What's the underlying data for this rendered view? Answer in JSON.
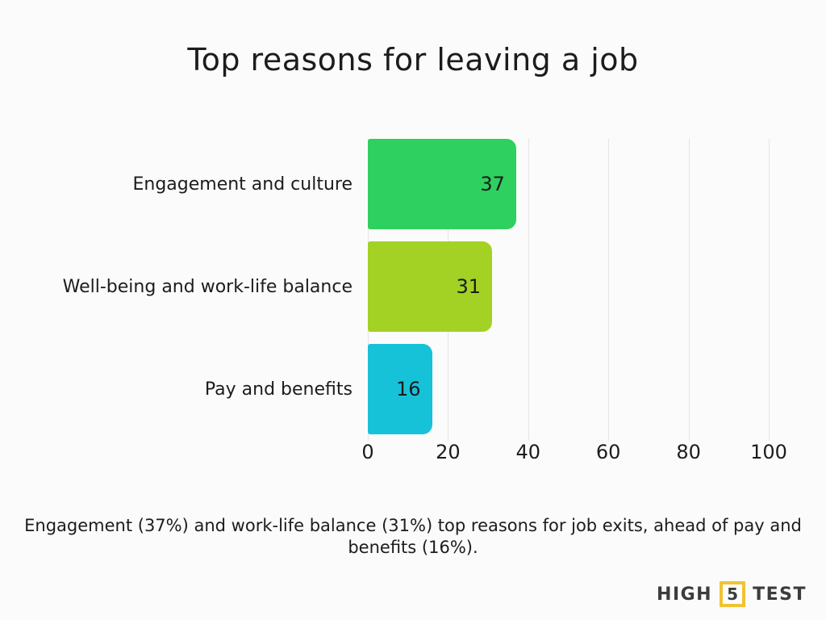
{
  "title": "Top reasons for leaving a job",
  "caption": "Engagement (37%) and work-life balance (31%) top reasons for job exits, ahead of pay and  benefits (16%).",
  "logo": {
    "left": "HIGH",
    "number": "5",
    "right": "TEST"
  },
  "colors": {
    "background": "#fbfbfb",
    "text": "#1c1c1c",
    "gridline": "#e4e4e4",
    "bar_green": "#2ed05f",
    "bar_lime": "#a3d225",
    "bar_cyan": "#16c2d8",
    "logo_text": "#3c3c3c",
    "logo_accent": "#f1c232"
  },
  "chart_data": {
    "type": "bar",
    "orientation": "horizontal",
    "title": "Top reasons for leaving a job",
    "categories": [
      "Engagement and culture",
      "Well-being and work-life balance",
      "Pay and benefits"
    ],
    "values": [
      37,
      31,
      16
    ],
    "value_labels": [
      "37",
      "31",
      "16"
    ],
    "bar_colors": [
      "#2ed05f",
      "#a3d225",
      "#16c2d8"
    ],
    "unit": "%",
    "xlabel": "",
    "ylabel": "",
    "xlim": [
      0,
      100
    ],
    "xticks": [
      0,
      20,
      40,
      60,
      80,
      100
    ],
    "grid": true,
    "legend": false
  }
}
